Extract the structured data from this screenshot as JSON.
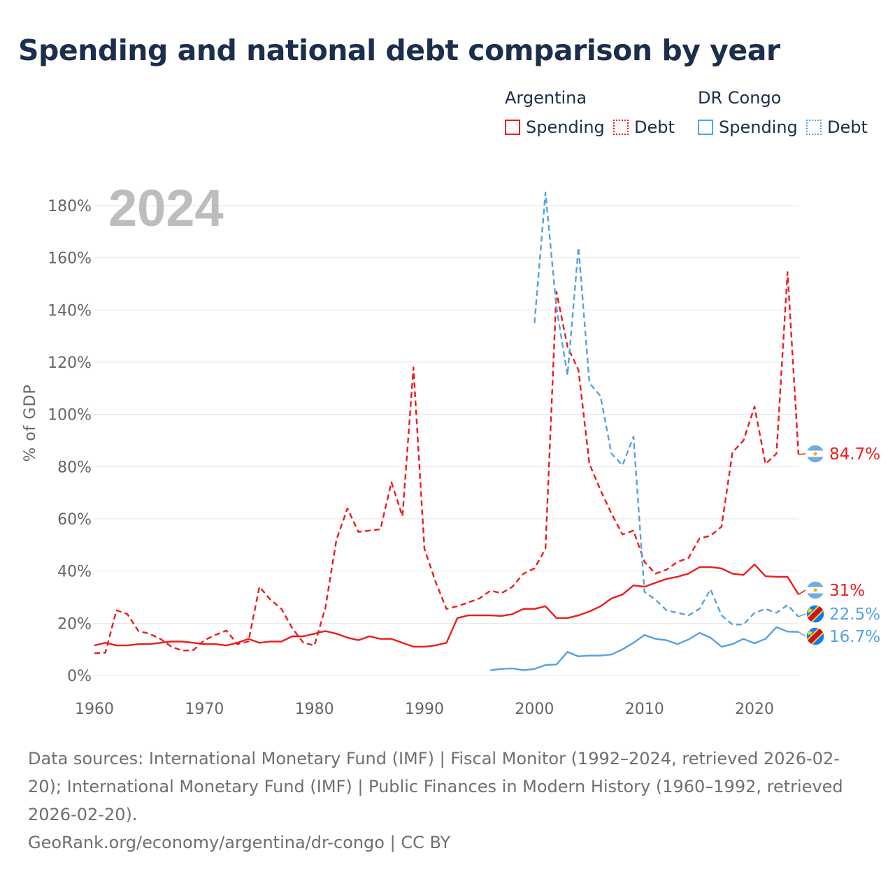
{
  "title": "Spending and national debt comparison by year",
  "legend": {
    "groups": [
      {
        "name": "Argentina",
        "items": [
          "Spending",
          "Debt"
        ]
      },
      {
        "name": "DR Congo",
        "items": [
          "Spending",
          "Debt"
        ]
      }
    ]
  },
  "colors": {
    "argentina": "#ee1c1c",
    "dr_congo": "#55a2e3",
    "title": "#1b2e4b",
    "year_watermark": "#bdbdbd",
    "grid": "#e6e6e6",
    "axis_text": "#666666"
  },
  "chart_data": {
    "type": "line",
    "title": "Spending and national debt comparison by year",
    "year_label": "2024",
    "xlabel": "",
    "ylabel": "% of GDP",
    "xlim": [
      1960,
      2024
    ],
    "ylim": [
      0,
      180
    ],
    "x_ticks": [
      1960,
      1970,
      1980,
      1990,
      2000,
      2010,
      2020
    ],
    "y_ticks": [
      0,
      20,
      40,
      60,
      80,
      100,
      120,
      140,
      160,
      180
    ],
    "y_tick_labels": [
      "0%",
      "20%",
      "40%",
      "60%",
      "80%",
      "100%",
      "120%",
      "140%",
      "160%",
      "180%"
    ],
    "series": [
      {
        "name": "Argentina Debt",
        "country": "Argentina",
        "measure": "Debt",
        "style": "dashed",
        "color": "#ee1c1c",
        "end_label": "84.7%",
        "points": [
          [
            1960,
            8.5
          ],
          [
            1961,
            8.7
          ],
          [
            1962,
            25
          ],
          [
            1963,
            23.5
          ],
          [
            1964,
            17
          ],
          [
            1965,
            16
          ],
          [
            1966,
            14
          ],
          [
            1967,
            11
          ],
          [
            1968,
            9.5
          ],
          [
            1969,
            9.7
          ],
          [
            1970,
            13.5
          ],
          [
            1971,
            15.5
          ],
          [
            1972,
            17.2
          ],
          [
            1973,
            12
          ],
          [
            1974,
            13
          ],
          [
            1975,
            34
          ],
          [
            1976,
            29
          ],
          [
            1977,
            25.5
          ],
          [
            1978,
            18
          ],
          [
            1979,
            12.5
          ],
          [
            1980,
            11.5
          ],
          [
            1981,
            26
          ],
          [
            1982,
            52
          ],
          [
            1983,
            64
          ],
          [
            1984,
            55
          ],
          [
            1985,
            55.5
          ],
          [
            1986,
            56
          ],
          [
            1987,
            74
          ],
          [
            1988,
            61
          ],
          [
            1989,
            118
          ],
          [
            1990,
            48.5
          ],
          [
            1991,
            36
          ],
          [
            1992,
            25.5
          ],
          [
            1993,
            26.5
          ],
          [
            1994,
            28
          ],
          [
            1995,
            29.5
          ],
          [
            1996,
            32.5
          ],
          [
            1997,
            31.5
          ],
          [
            1998,
            34
          ],
          [
            1999,
            39
          ],
          [
            2000,
            41
          ],
          [
            2001,
            48.5
          ],
          [
            2002,
            147
          ],
          [
            2003,
            126
          ],
          [
            2004,
            117
          ],
          [
            2005,
            81
          ],
          [
            2006,
            71
          ],
          [
            2007,
            62
          ],
          [
            2008,
            54
          ],
          [
            2009,
            55.5
          ],
          [
            2010,
            43.5
          ],
          [
            2011,
            39
          ],
          [
            2012,
            40.5
          ],
          [
            2013,
            43.5
          ],
          [
            2014,
            45
          ],
          [
            2015,
            52.5
          ],
          [
            2016,
            53.5
          ],
          [
            2017,
            57
          ],
          [
            2018,
            85.5
          ],
          [
            2019,
            90
          ],
          [
            2020,
            103
          ],
          [
            2021,
            81
          ],
          [
            2022,
            85
          ],
          [
            2023,
            154.5
          ],
          [
            2024,
            84.7
          ]
        ]
      },
      {
        "name": "Argentina Spending",
        "country": "Argentina",
        "measure": "Spending",
        "style": "solid",
        "color": "#ee1c1c",
        "end_label": "31%",
        "points": [
          [
            1960,
            11.5
          ],
          [
            1961,
            12.5
          ],
          [
            1962,
            11.5
          ],
          [
            1963,
            11.5
          ],
          [
            1964,
            12
          ],
          [
            1965,
            12
          ],
          [
            1966,
            12.5
          ],
          [
            1967,
            13
          ],
          [
            1968,
            13
          ],
          [
            1969,
            12.5
          ],
          [
            1970,
            12
          ],
          [
            1971,
            12
          ],
          [
            1972,
            11.5
          ],
          [
            1973,
            12.5
          ],
          [
            1974,
            14
          ],
          [
            1975,
            12.5
          ],
          [
            1976,
            13
          ],
          [
            1977,
            13
          ],
          [
            1978,
            15
          ],
          [
            1979,
            15
          ],
          [
            1980,
            16
          ],
          [
            1981,
            17
          ],
          [
            1982,
            16
          ],
          [
            1983,
            14.5
          ],
          [
            1984,
            13.5
          ],
          [
            1985,
            15
          ],
          [
            1986,
            14
          ],
          [
            1987,
            14
          ],
          [
            1988,
            12.5
          ],
          [
            1989,
            11
          ],
          [
            1990,
            11
          ],
          [
            1991,
            11.5
          ],
          [
            1992,
            12.5
          ],
          [
            1993,
            22
          ],
          [
            1994,
            23
          ],
          [
            1995,
            23
          ],
          [
            1996,
            23
          ],
          [
            1997,
            22.8
          ],
          [
            1998,
            23.5
          ],
          [
            1999,
            25.5
          ],
          [
            2000,
            25.5
          ],
          [
            2001,
            26.5
          ],
          [
            2002,
            22
          ],
          [
            2003,
            22
          ],
          [
            2004,
            23
          ],
          [
            2005,
            24.5
          ],
          [
            2006,
            26.5
          ],
          [
            2007,
            29.5
          ],
          [
            2008,
            31
          ],
          [
            2009,
            34.5
          ],
          [
            2010,
            34
          ],
          [
            2011,
            35.5
          ],
          [
            2012,
            37
          ],
          [
            2013,
            37.8
          ],
          [
            2014,
            39
          ],
          [
            2015,
            41.5
          ],
          [
            2016,
            41.5
          ],
          [
            2017,
            41
          ],
          [
            2018,
            39
          ],
          [
            2019,
            38.5
          ],
          [
            2020,
            42.5
          ],
          [
            2021,
            38
          ],
          [
            2022,
            37.8
          ],
          [
            2023,
            37.8
          ],
          [
            2024,
            31
          ]
        ]
      },
      {
        "name": "DR Congo Debt",
        "country": "DR Congo",
        "measure": "Debt",
        "style": "dashed",
        "color": "#55a2e3",
        "end_label": "22.5%",
        "points": [
          [
            2000,
            135
          ],
          [
            2001,
            185
          ],
          [
            2002,
            141
          ],
          [
            2003,
            115
          ],
          [
            2004,
            164
          ],
          [
            2005,
            112
          ],
          [
            2006,
            107
          ],
          [
            2007,
            85
          ],
          [
            2008,
            80.5
          ],
          [
            2009,
            91.5
          ],
          [
            2010,
            32
          ],
          [
            2011,
            29
          ],
          [
            2012,
            25
          ],
          [
            2013,
            24
          ],
          [
            2014,
            23
          ],
          [
            2015,
            25.5
          ],
          [
            2016,
            33
          ],
          [
            2017,
            23
          ],
          [
            2018,
            19.5
          ],
          [
            2019,
            19.5
          ],
          [
            2020,
            24
          ],
          [
            2021,
            25.5
          ],
          [
            2022,
            24
          ],
          [
            2023,
            27
          ],
          [
            2024,
            22.5
          ]
        ]
      },
      {
        "name": "DR Congo Spending",
        "country": "DR Congo",
        "measure": "Spending",
        "style": "solid",
        "color": "#55a2e3",
        "end_label": "16.7%",
        "points": [
          [
            1996,
            2
          ],
          [
            1997,
            2.5
          ],
          [
            1998,
            2.7
          ],
          [
            1999,
            2
          ],
          [
            2000,
            2.5
          ],
          [
            2001,
            4
          ],
          [
            2002,
            4.2
          ],
          [
            2003,
            9
          ],
          [
            2004,
            7.3
          ],
          [
            2005,
            7.6
          ],
          [
            2006,
            7.6
          ],
          [
            2007,
            8
          ],
          [
            2008,
            10
          ],
          [
            2009,
            12.5
          ],
          [
            2010,
            15.5
          ],
          [
            2011,
            14
          ],
          [
            2012,
            13.5
          ],
          [
            2013,
            12
          ],
          [
            2014,
            13.8
          ],
          [
            2015,
            16.3
          ],
          [
            2016,
            14.5
          ],
          [
            2017,
            11
          ],
          [
            2018,
            12
          ],
          [
            2019,
            14
          ],
          [
            2020,
            12.3
          ],
          [
            2021,
            14
          ],
          [
            2022,
            18.5
          ],
          [
            2023,
            16.8
          ],
          [
            2024,
            16.7
          ]
        ]
      }
    ]
  },
  "footer": {
    "sources": "Data sources: International Monetary Fund (IMF) | Fiscal Monitor (1992–2024, retrieved 2026-02-20); International Monetary Fund (IMF) | Public Finances in Modern History (1960–1992, retrieved 2026-02-20).",
    "credit": "GeoRank.org/economy/argentina/dr-congo | CC BY"
  }
}
